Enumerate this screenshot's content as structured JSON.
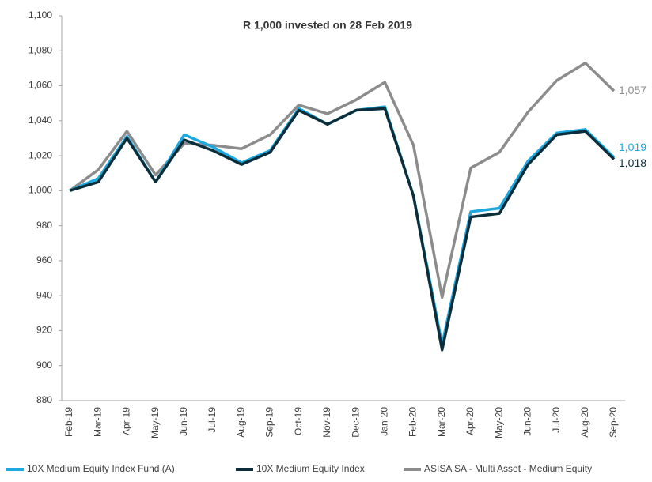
{
  "chart_data": {
    "type": "line",
    "title": "R 1,000 invested on 28 Feb 2019",
    "categories": [
      "Feb-19",
      "Mar-19",
      "Apr-19",
      "May-19",
      "Jun-19",
      "Jul-19",
      "Aug-19",
      "Sep-19",
      "Oct-19",
      "Nov-19",
      "Dec-19",
      "Jan-20",
      "Feb-20",
      "Mar-20",
      "Apr-20",
      "May-20",
      "Jun-20",
      "Jul-20",
      "Aug-20",
      "Sep-20"
    ],
    "series": [
      {
        "name": "10X Medium Equity Index Fund (A)",
        "color": "#1ba9e0",
        "end_label": "1,019",
        "values": [
          1000,
          1007,
          1031,
          1005,
          1032,
          1025,
          1016,
          1023,
          1047,
          1038,
          1046,
          1048,
          997,
          912,
          988,
          990,
          1017,
          1033,
          1035,
          1019
        ]
      },
      {
        "name": "10X Medium Equity Index",
        "color": "#0b2e3a",
        "end_label": "1,018",
        "values": [
          1000,
          1005,
          1030,
          1005,
          1029,
          1023,
          1015,
          1022,
          1046,
          1038,
          1046,
          1047,
          997,
          909,
          985,
          987,
          1015,
          1032,
          1034,
          1018
        ]
      },
      {
        "name": "ASISA SA - Multi Asset - Medium Equity",
        "color": "#8c8c8c",
        "end_label": "1,057",
        "values": [
          1000,
          1012,
          1034,
          1009,
          1027,
          1026,
          1024,
          1032,
          1049,
          1044,
          1052,
          1062,
          1026,
          939,
          1013,
          1022,
          1045,
          1063,
          1073,
          1057
        ]
      }
    ],
    "ylim": [
      880,
      1100
    ],
    "yticks": [
      880,
      900,
      920,
      940,
      960,
      980,
      {
        "value": 1000,
        "label": "1,000"
      },
      {
        "value": 1020,
        "label": "1,020"
      },
      {
        "value": 1040,
        "label": "1,040"
      },
      {
        "value": 1060,
        "label": "1,060"
      },
      {
        "value": 1080,
        "label": "1,080"
      },
      {
        "value": 1100,
        "label": "1,100"
      }
    ],
    "grid": false,
    "legend": "bottom"
  }
}
